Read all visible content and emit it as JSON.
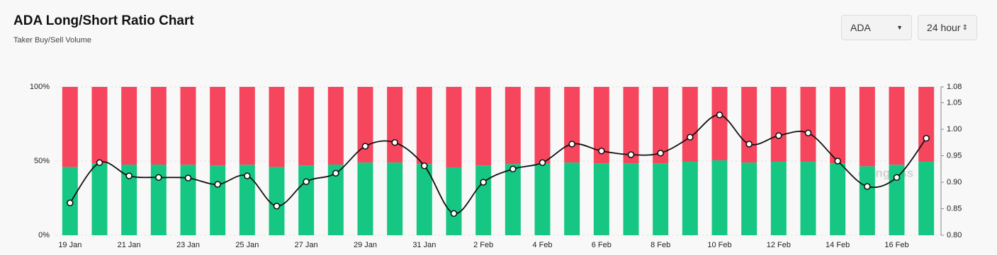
{
  "header": {
    "title": "ADA Long/Short Ratio Chart",
    "subtitle": "Taker Buy/Sell Volume"
  },
  "controls": {
    "coin": "ADA",
    "range": "24 hour"
  },
  "chart_data": {
    "type": "bar",
    "watermark": "coinglass",
    "categories": [
      "19 Jan",
      null,
      "21 Jan",
      null,
      "23 Jan",
      null,
      "25 Jan",
      null,
      "27 Jan",
      null,
      "29 Jan",
      null,
      "31 Jan",
      null,
      "2 Feb",
      null,
      "4 Feb",
      null,
      "6 Feb",
      null,
      "8 Feb",
      null,
      "10 Feb",
      null,
      "12 Feb",
      null,
      "14 Feb",
      null,
      "16 Feb",
      null
    ],
    "series": [
      {
        "type": "bar",
        "color": "#16c784",
        "values": [
          46,
          48.5,
          47.6,
          47.6,
          47.5,
          47,
          47.5,
          46,
          47,
          47.6,
          49,
          49,
          48,
          45.7,
          47,
          48,
          48.2,
          49,
          48.5,
          48.5,
          48.5,
          49.5,
          50.5,
          49,
          49.5,
          49.5,
          48.5,
          46.5,
          47.5,
          49.5
        ]
      },
      {
        "type": "bar",
        "color": "#f6465d",
        "values": [
          54,
          51.5,
          52.4,
          52.4,
          52.5,
          53,
          52.5,
          54,
          53,
          52.4,
          51,
          51,
          52,
          54.3,
          53,
          52,
          51.8,
          51,
          51.5,
          51.5,
          51.5,
          50.5,
          49.5,
          51,
          50.5,
          50.5,
          51.5,
          53.5,
          52.5,
          50.5
        ]
      },
      {
        "type": "line",
        "axis": "y2",
        "color": "#111111",
        "values": [
          0.861,
          0.937,
          0.912,
          0.909,
          0.908,
          0.896,
          0.912,
          0.855,
          0.901,
          0.917,
          0.968,
          0.975,
          0.931,
          0.841,
          0.9,
          0.925,
          0.937,
          0.972,
          0.959,
          0.952,
          0.955,
          0.985,
          1.027,
          0.972,
          0.988,
          0.993,
          0.94,
          0.892,
          0.909,
          0.983
        ]
      }
    ],
    "ylim": [
      0,
      100
    ],
    "yticks": [
      {
        "value": 0,
        "label": "0%"
      },
      {
        "value": 50,
        "label": "50%"
      },
      {
        "value": 100,
        "label": "100%"
      }
    ],
    "y2lim": [
      0.8,
      1.08
    ],
    "y2ticks": [
      {
        "value": 0.8,
        "label": "0.80"
      },
      0.85,
      {
        "value": 0.9,
        "label": "0.90"
      },
      0.95,
      {
        "value": 1,
        "label": "1.00"
      },
      1.05,
      1.08
    ],
    "grid": true
  }
}
